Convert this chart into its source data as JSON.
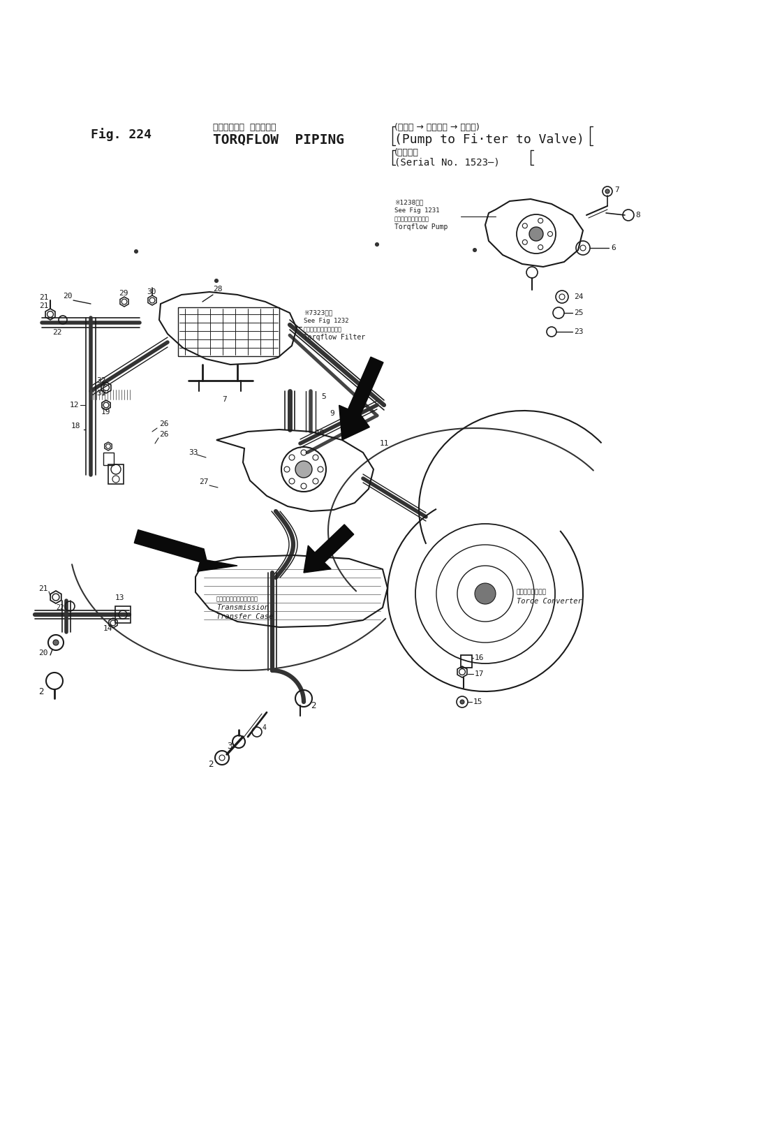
{
  "bg_color": "#ffffff",
  "line_color": "#1a1a1a",
  "fig_width": 10.9,
  "fig_height": 16.28,
  "title_fig": "Fig. 224",
  "title_jp_line1": "トルクフロー  バイピング",
  "title_en_main": "TORQFLOW  PIPING",
  "title_bracket_jp": "(ボンプ → フィルタ → バルブ)",
  "title_bracket_en": "(Pump to Fi·ter to Valve)",
  "serial_jp": "(適用車植",
  "serial_en": "(Serial No. 1523-)"
}
